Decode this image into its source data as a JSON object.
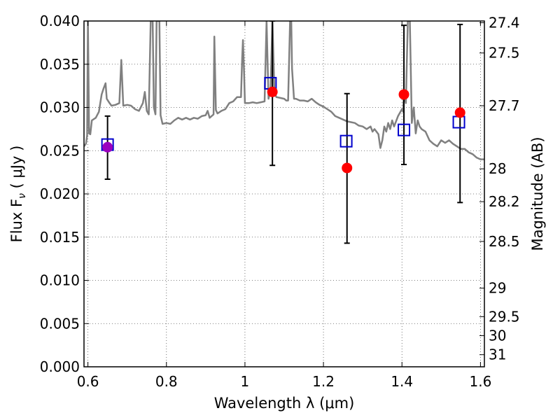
{
  "chart_data": {
    "type": "scatter",
    "xlabel": "Wavelength  λ (μm)",
    "ylabel": "Flux  F",
    "ylabel_sub": "ν",
    "ylabel_unit": " ( μJy )",
    "y2label": "Magnitude (AB)",
    "xlim": [
      0.59,
      1.61
    ],
    "ylim": [
      0.0,
      0.04
    ],
    "grid": true,
    "x_ticks": [
      {
        "value": 0.6,
        "label": "0.6"
      },
      {
        "value": 0.8,
        "label": "0.8"
      },
      {
        "value": 1.0,
        "label": "1"
      },
      {
        "value": 1.2,
        "label": "1.2"
      },
      {
        "value": 1.4,
        "label": "1.4"
      },
      {
        "value": 1.6,
        "label": "1.6"
      }
    ],
    "y_ticks": [
      {
        "value": 0.0,
        "label": "0.000"
      },
      {
        "value": 0.005,
        "label": "0.005"
      },
      {
        "value": 0.01,
        "label": "0.010"
      },
      {
        "value": 0.015,
        "label": "0.015"
      },
      {
        "value": 0.02,
        "label": "0.020"
      },
      {
        "value": 0.025,
        "label": "0.025"
      },
      {
        "value": 0.03,
        "label": "0.030"
      },
      {
        "value": 0.035,
        "label": "0.035"
      },
      {
        "value": 0.04,
        "label": "0.040"
      }
    ],
    "y2_ticks": [
      {
        "flux": 0.0398,
        "label": "27.4"
      },
      {
        "flux": 0.0363,
        "label": "27.5"
      },
      {
        "flux": 0.0302,
        "label": "27.7"
      },
      {
        "flux": 0.0229,
        "label": "28"
      },
      {
        "flux": 0.0191,
        "label": "28.2"
      },
      {
        "flux": 0.0145,
        "label": "28.5"
      },
      {
        "flux": 0.0091,
        "label": "29"
      },
      {
        "flux": 0.0058,
        "label": "29.5"
      },
      {
        "flux": 0.0036,
        "label": "30"
      },
      {
        "flux": 0.0014,
        "label": "31"
      }
    ],
    "spectrum": {
      "color": "#808080",
      "points": [
        [
          0.59,
          0.0255
        ],
        [
          0.595,
          0.0258
        ],
        [
          0.598,
          0.0268
        ],
        [
          0.6,
          0.04
        ],
        [
          0.603,
          0.027
        ],
        [
          0.606,
          0.0269
        ],
        [
          0.61,
          0.0285
        ],
        [
          0.62,
          0.0288
        ],
        [
          0.628,
          0.0295
        ],
        [
          0.635,
          0.0315
        ],
        [
          0.64,
          0.0322
        ],
        [
          0.645,
          0.0328
        ],
        [
          0.648,
          0.031
        ],
        [
          0.655,
          0.0305
        ],
        [
          0.66,
          0.0302
        ],
        [
          0.67,
          0.0303
        ],
        [
          0.68,
          0.0305
        ],
        [
          0.685,
          0.0355
        ],
        [
          0.69,
          0.0302
        ],
        [
          0.7,
          0.0303
        ],
        [
          0.71,
          0.0302
        ],
        [
          0.72,
          0.0298
        ],
        [
          0.73,
          0.0296
        ],
        [
          0.74,
          0.0305
        ],
        [
          0.745,
          0.0318
        ],
        [
          0.75,
          0.0296
        ],
        [
          0.755,
          0.0292
        ],
        [
          0.76,
          0.04
        ],
        [
          0.765,
          0.04
        ],
        [
          0.768,
          0.03
        ],
        [
          0.772,
          0.0292
        ],
        [
          0.775,
          0.04
        ],
        [
          0.778,
          0.04
        ],
        [
          0.782,
          0.04
        ],
        [
          0.785,
          0.0291
        ],
        [
          0.79,
          0.0281
        ],
        [
          0.8,
          0.0282
        ],
        [
          0.81,
          0.0281
        ],
        [
          0.82,
          0.0285
        ],
        [
          0.83,
          0.0288
        ],
        [
          0.84,
          0.0286
        ],
        [
          0.85,
          0.0288
        ],
        [
          0.86,
          0.0286
        ],
        [
          0.87,
          0.0288
        ],
        [
          0.88,
          0.0287
        ],
        [
          0.89,
          0.029
        ],
        [
          0.9,
          0.0291
        ],
        [
          0.905,
          0.0296
        ],
        [
          0.91,
          0.0288
        ],
        [
          0.92,
          0.0292
        ],
        [
          0.922,
          0.0382
        ],
        [
          0.926,
          0.0297
        ],
        [
          0.93,
          0.0293
        ],
        [
          0.94,
          0.0296
        ],
        [
          0.95,
          0.0298
        ],
        [
          0.96,
          0.0305
        ],
        [
          0.97,
          0.0307
        ],
        [
          0.98,
          0.0312
        ],
        [
          0.99,
          0.0312
        ],
        [
          0.993,
          0.0358
        ],
        [
          0.995,
          0.0378
        ],
        [
          0.998,
          0.0338
        ],
        [
          1.0,
          0.0305
        ],
        [
          1.01,
          0.0305
        ],
        [
          1.02,
          0.0306
        ],
        [
          1.03,
          0.0305
        ],
        [
          1.04,
          0.0306
        ],
        [
          1.05,
          0.0307
        ],
        [
          1.055,
          0.04
        ],
        [
          1.06,
          0.031
        ],
        [
          1.065,
          0.032
        ],
        [
          1.07,
          0.04
        ],
        [
          1.075,
          0.0318
        ],
        [
          1.08,
          0.0312
        ],
        [
          1.09,
          0.0311
        ],
        [
          1.1,
          0.031
        ],
        [
          1.105,
          0.0308
        ],
        [
          1.11,
          0.0308
        ],
        [
          1.115,
          0.04
        ],
        [
          1.118,
          0.04
        ],
        [
          1.12,
          0.0345
        ],
        [
          1.125,
          0.031
        ],
        [
          1.13,
          0.031
        ],
        [
          1.14,
          0.0308
        ],
        [
          1.15,
          0.0308
        ],
        [
          1.16,
          0.0307
        ],
        [
          1.17,
          0.031
        ],
        [
          1.18,
          0.0306
        ],
        [
          1.19,
          0.0303
        ],
        [
          1.2,
          0.0301
        ],
        [
          1.21,
          0.0298
        ],
        [
          1.22,
          0.0295
        ],
        [
          1.23,
          0.029
        ],
        [
          1.24,
          0.0288
        ],
        [
          1.25,
          0.0286
        ],
        [
          1.26,
          0.0284
        ],
        [
          1.27,
          0.0283
        ],
        [
          1.28,
          0.0282
        ],
        [
          1.29,
          0.0279
        ],
        [
          1.3,
          0.0278
        ],
        [
          1.31,
          0.0275
        ],
        [
          1.32,
          0.0278
        ],
        [
          1.325,
          0.0272
        ],
        [
          1.33,
          0.0275
        ],
        [
          1.34,
          0.0269
        ],
        [
          1.345,
          0.0253
        ],
        [
          1.35,
          0.0262
        ],
        [
          1.355,
          0.0278
        ],
        [
          1.36,
          0.0272
        ],
        [
          1.365,
          0.0282
        ],
        [
          1.37,
          0.0275
        ],
        [
          1.375,
          0.0285
        ],
        [
          1.38,
          0.0278
        ],
        [
          1.39,
          0.029
        ],
        [
          1.4,
          0.0298
        ],
        [
          1.403,
          0.0295
        ],
        [
          1.405,
          0.0318
        ],
        [
          1.41,
          0.0305
        ],
        [
          1.415,
          0.04
        ],
        [
          1.42,
          0.04
        ],
        [
          1.425,
          0.0282
        ],
        [
          1.43,
          0.03
        ],
        [
          1.435,
          0.027
        ],
        [
          1.44,
          0.0285
        ],
        [
          1.445,
          0.0278
        ],
        [
          1.45,
          0.0275
        ],
        [
          1.46,
          0.0272
        ],
        [
          1.47,
          0.0262
        ],
        [
          1.48,
          0.0258
        ],
        [
          1.49,
          0.0255
        ],
        [
          1.5,
          0.0262
        ],
        [
          1.51,
          0.0259
        ],
        [
          1.52,
          0.0262
        ],
        [
          1.53,
          0.0258
        ],
        [
          1.54,
          0.0255
        ],
        [
          1.55,
          0.0252
        ],
        [
          1.56,
          0.0252
        ],
        [
          1.57,
          0.0248
        ],
        [
          1.58,
          0.0246
        ],
        [
          1.59,
          0.0242
        ],
        [
          1.6,
          0.024
        ],
        [
          1.61,
          0.024
        ]
      ]
    },
    "measured": [
      {
        "x": 0.65,
        "y": 0.0254,
        "yerr_low": 0.0217,
        "yerr_high": 0.029,
        "color": "#9b00bf"
      },
      {
        "x": 1.07,
        "y": 0.0318,
        "yerr_low": 0.0233,
        "yerr_high": 0.04,
        "color": "#ff0000"
      },
      {
        "x": 1.26,
        "y": 0.023,
        "yerr_low": 0.0143,
        "yerr_high": 0.0316,
        "color": "#ff0000"
      },
      {
        "x": 1.405,
        "y": 0.0315,
        "yerr_low": 0.0234,
        "yerr_high": 0.0395,
        "color": "#ff0000"
      },
      {
        "x": 1.548,
        "y": 0.0294,
        "yerr_low": 0.019,
        "yerr_high": 0.0396,
        "color": "#ff0000"
      }
    ],
    "model": [
      {
        "x": 0.65,
        "y": 0.0257
      },
      {
        "x": 1.065,
        "y": 0.0328
      },
      {
        "x": 1.258,
        "y": 0.0261
      },
      {
        "x": 1.405,
        "y": 0.0274
      },
      {
        "x": 1.545,
        "y": 0.0283
      }
    ],
    "colors": {
      "model": "#0000cc",
      "errorbar": "#000000",
      "grid": "#555555"
    }
  }
}
